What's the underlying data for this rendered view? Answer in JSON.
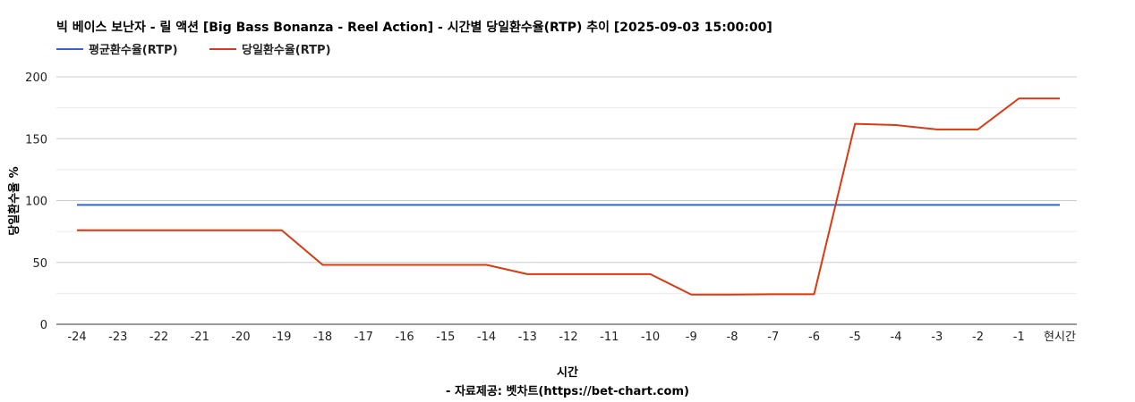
{
  "chart_data": {
    "type": "line",
    "title": "빅 베이스 보난자 - 릴 액션 [Big Bass Bonanza - Reel Action] - 시간별 당일환수율(RTP) 추이 [2025-09-03 15:00:00]",
    "xlabel": "시간",
    "ylabel": "당일환수율 %",
    "source": "- 자료제공: 벳차트(https://bet-chart.com)",
    "legend_position": "top-left",
    "grid": true,
    "ylim": [
      0,
      200
    ],
    "yticks": [
      "0",
      "50",
      "100",
      "150",
      "200"
    ],
    "categories": [
      "-24",
      "-23",
      "-22",
      "-21",
      "-20",
      "-19",
      "-18",
      "-17",
      "-16",
      "-15",
      "-14",
      "-13",
      "-12",
      "-11",
      "-10",
      "-9",
      "-8",
      "-7",
      "-6",
      "-5",
      "-4",
      "-3",
      "-2",
      "-1",
      "현시간"
    ],
    "series": [
      {
        "name": "평균환수율(RTP)",
        "color": "#3366cc",
        "values": [
          96.5,
          96.5,
          96.5,
          96.5,
          96.5,
          96.5,
          96.5,
          96.5,
          96.5,
          96.5,
          96.5,
          96.5,
          96.5,
          96.5,
          96.5,
          96.5,
          96.5,
          96.5,
          96.5,
          96.5,
          96.5,
          96.5,
          96.5,
          96.5,
          96.5
        ]
      },
      {
        "name": "당일환수율(RTP)",
        "color": "#dc3912",
        "values": [
          76,
          76,
          76,
          76,
          76,
          76,
          48,
          48,
          48,
          48,
          48,
          40.5,
          40.5,
          40.5,
          40.5,
          24,
          24,
          24.3,
          24.3,
          162,
          161,
          157.5,
          157.5,
          182.5,
          182.5
        ]
      }
    ]
  }
}
